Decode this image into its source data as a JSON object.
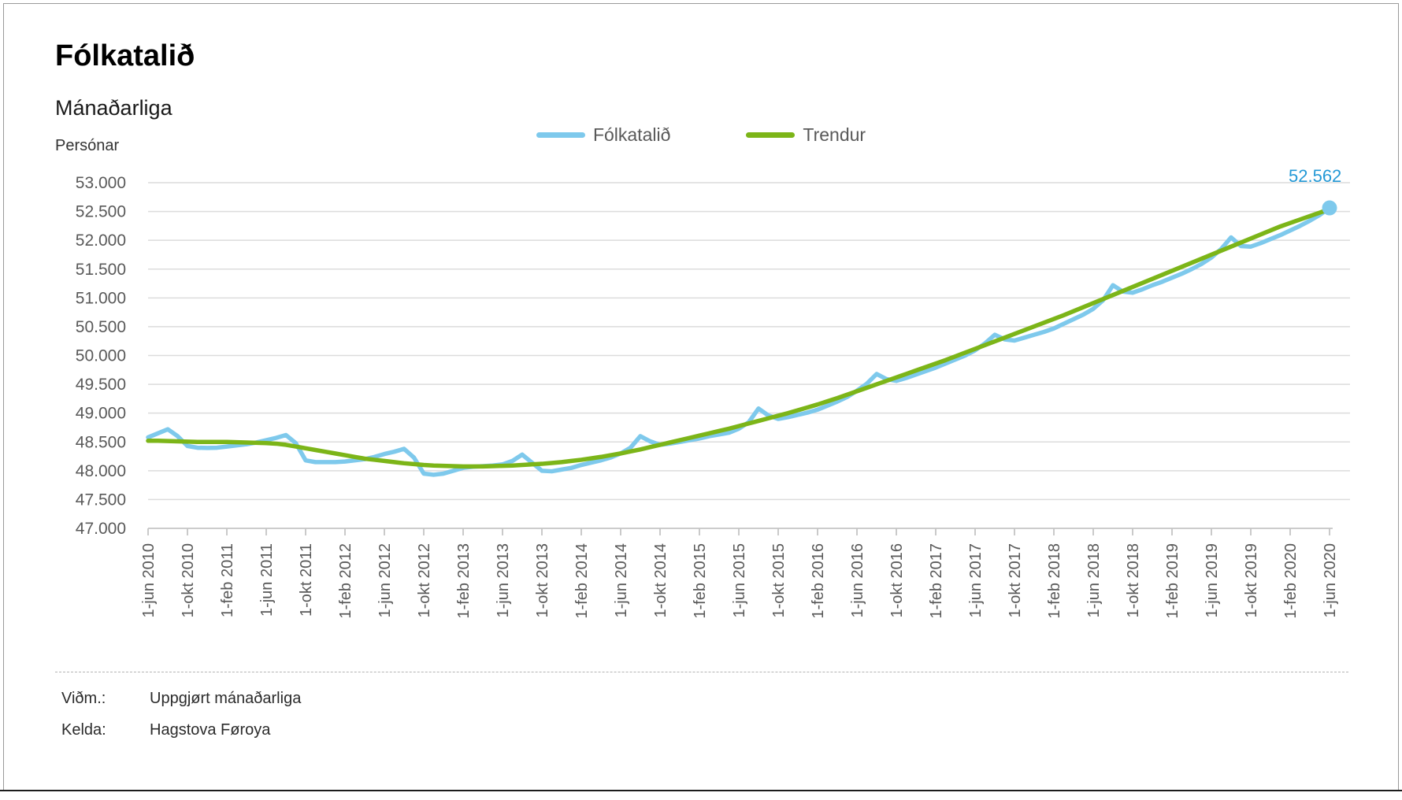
{
  "page": {
    "title": "Fólkatalið",
    "subtitle": "Mánaðarliga",
    "y_unit": "Persónar"
  },
  "legend": [
    {
      "label": "Fólkatalið",
      "color": "#7EC9EC"
    },
    {
      "label": "Trendur",
      "color": "#7CB518"
    }
  ],
  "colors": {
    "series_blue": "#7EC9EC",
    "series_green": "#7CB518",
    "end_label_blue": "#2499D6",
    "grid": "#DCDCDC",
    "axis": "#C4C4C4",
    "axis_text": "#595959"
  },
  "footer": {
    "rows": [
      {
        "label": "Viðm.:",
        "value": "Uppgjørt mánaðarliga"
      },
      {
        "label": "Kelda:",
        "value": "Hagstova Føroya"
      }
    ]
  },
  "chart_data": {
    "type": "line",
    "title": "Fólkatalið",
    "subtitle": "Mánaðarliga",
    "ylabel": "Persónar",
    "xlabel": "",
    "ylim": [
      47000,
      53000
    ],
    "ytick_step": 500,
    "ytick_labels": [
      "53.000",
      "52.500",
      "52.000",
      "51.500",
      "51.000",
      "50.500",
      "50.000",
      "49.500",
      "49.000",
      "48.500",
      "48.000",
      "47.500",
      "47.000"
    ],
    "grid": "horizontal",
    "legend_position": "top-center",
    "x_start": "1-jun 2010",
    "x_end": "1-jun 2020",
    "x_freq": "monthly",
    "xtick_every_months": 4,
    "xtick_labels": [
      "1-jun 2010",
      "1-okt 2010",
      "1-feb 2011",
      "1-jun 2011",
      "1-okt 2011",
      "1-feb 2012",
      "1-jun 2012",
      "1-okt 2012",
      "1-feb 2013",
      "1-jun 2013",
      "1-okt 2013",
      "1-feb 2014",
      "1-jun 2014",
      "1-okt 2014",
      "1-feb 2015",
      "1-jun 2015",
      "1-okt 2015",
      "1-feb 2016",
      "1-jun 2016",
      "1-okt 2016",
      "1-feb 2017",
      "1-jun 2017",
      "1-okt 2017",
      "1-feb 2018",
      "1-jun 2018",
      "1-okt 2018",
      "1-feb 2019",
      "1-jun 2019",
      "1-okt 2019",
      "1-feb 2020",
      "1-jun 2020"
    ],
    "end_label": "52.562",
    "end_value": 52562,
    "series": [
      {
        "name": "Fólkatalið",
        "color": "#7EC9EC",
        "values": [
          48580,
          48650,
          48720,
          48600,
          48430,
          48400,
          48395,
          48400,
          48420,
          48440,
          48460,
          48490,
          48530,
          48570,
          48620,
          48480,
          48180,
          48150,
          48150,
          48150,
          48160,
          48180,
          48200,
          48240,
          48290,
          48330,
          48380,
          48230,
          47950,
          47930,
          47950,
          48000,
          48050,
          48070,
          48080,
          48090,
          48110,
          48170,
          48280,
          48140,
          48000,
          47990,
          48020,
          48050,
          48100,
          48140,
          48180,
          48230,
          48300,
          48400,
          48600,
          48510,
          48450,
          48470,
          48500,
          48530,
          48560,
          48600,
          48630,
          48660,
          48730,
          48840,
          49080,
          48960,
          48900,
          48930,
          48970,
          49010,
          49060,
          49130,
          49200,
          49280,
          49390,
          49510,
          49680,
          49590,
          49560,
          49610,
          49670,
          49730,
          49790,
          49860,
          49930,
          50000,
          50090,
          50210,
          50360,
          50280,
          50260,
          50310,
          50360,
          50410,
          50470,
          50550,
          50630,
          50710,
          50810,
          50960,
          51220,
          51110,
          51090,
          51150,
          51220,
          51280,
          51350,
          51420,
          51500,
          51590,
          51700,
          51850,
          52050,
          51900,
          51890,
          51950,
          52020,
          52090,
          52170,
          52250,
          52340,
          52440,
          52562
        ]
      },
      {
        "name": "Trendur",
        "color": "#7CB518",
        "values": [
          48520,
          48520,
          48515,
          48510,
          48505,
          48500,
          48500,
          48500,
          48500,
          48495,
          48490,
          48485,
          48480,
          48470,
          48450,
          48420,
          48390,
          48360,
          48330,
          48300,
          48270,
          48240,
          48210,
          48190,
          48170,
          48150,
          48130,
          48115,
          48100,
          48090,
          48085,
          48080,
          48075,
          48075,
          48075,
          48080,
          48085,
          48090,
          48100,
          48110,
          48120,
          48135,
          48150,
          48170,
          48190,
          48215,
          48240,
          48270,
          48300,
          48335,
          48370,
          48410,
          48450,
          48490,
          48530,
          48570,
          48610,
          48650,
          48690,
          48730,
          48775,
          48820,
          48865,
          48910,
          48955,
          49000,
          49050,
          49100,
          49150,
          49205,
          49260,
          49320,
          49380,
          49440,
          49500,
          49560,
          49620,
          49680,
          49740,
          49800,
          49860,
          49920,
          49985,
          50050,
          50115,
          50180,
          50245,
          50310,
          50375,
          50440,
          50505,
          50570,
          50635,
          50700,
          50770,
          50840,
          50910,
          50980,
          51050,
          51120,
          51190,
          51260,
          51330,
          51400,
          51470,
          51540,
          51610,
          51680,
          51750,
          51820,
          51890,
          51960,
          52030,
          52100,
          52170,
          52240,
          52300,
          52360,
          52420,
          52480,
          52540
        ]
      }
    ]
  }
}
